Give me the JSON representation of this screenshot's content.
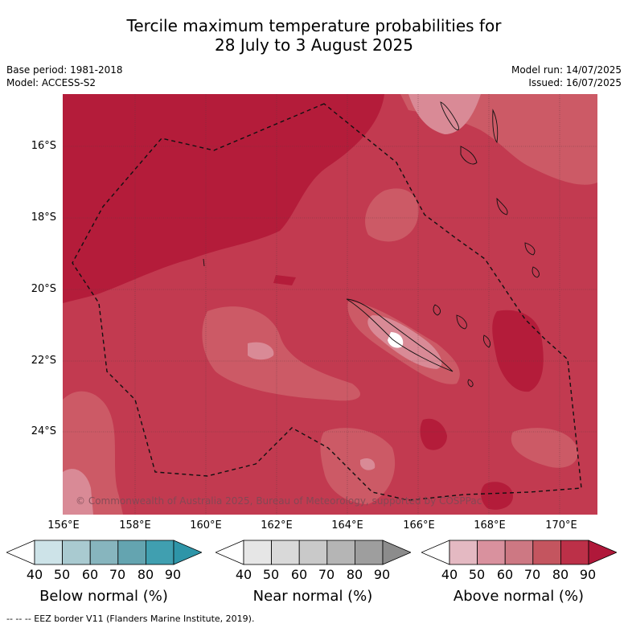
{
  "title_line1": "Tercile maximum temperature probabilities for",
  "title_line2": "28 July to 3 August 2025",
  "base_period": "Base period: 1981-2018",
  "model": "Model: ACCESS-S2",
  "model_run": "Model run: 14/07/2025",
  "issued": "Issued: 16/07/2025",
  "copyright": "© Commonwealth of Australia 2025, Bureau of Meteorology, supported by COSPPac",
  "lat_labels": [
    "16°S",
    "18°S",
    "20°S",
    "22°S",
    "24°S"
  ],
  "lon_labels": [
    "156°E",
    "158°E",
    "160°E",
    "162°E",
    "164°E",
    "166°E",
    "168°E",
    "170°E"
  ],
  "colorbars": [
    {
      "label": "Below normal (%)",
      "colors": [
        "#ffffff",
        "#cde3e8",
        "#a9cad0",
        "#87b5be",
        "#64a4b0",
        "#409fb0",
        "#2e95a8"
      ]
    },
    {
      "label": "Near normal (%)",
      "colors": [
        "#ffffff",
        "#e6e6e6",
        "#d9d9d9",
        "#c9c9c9",
        "#b5b5b5",
        "#9e9e9e",
        "#8c8c8c"
      ]
    },
    {
      "label": "Above normal (%)",
      "colors": [
        "#ffffff",
        "#e4b9c2",
        "#d9919e",
        "#cd7883",
        "#c4555f",
        "#bc3048",
        "#b0183a"
      ]
    }
  ],
  "colorbar_ticks": [
    "40",
    "50",
    "60",
    "70",
    "80",
    "90"
  ],
  "eez_footnote": "--  --  -- EEZ border V11 (Flanders Marine Institute, 2019)."
}
